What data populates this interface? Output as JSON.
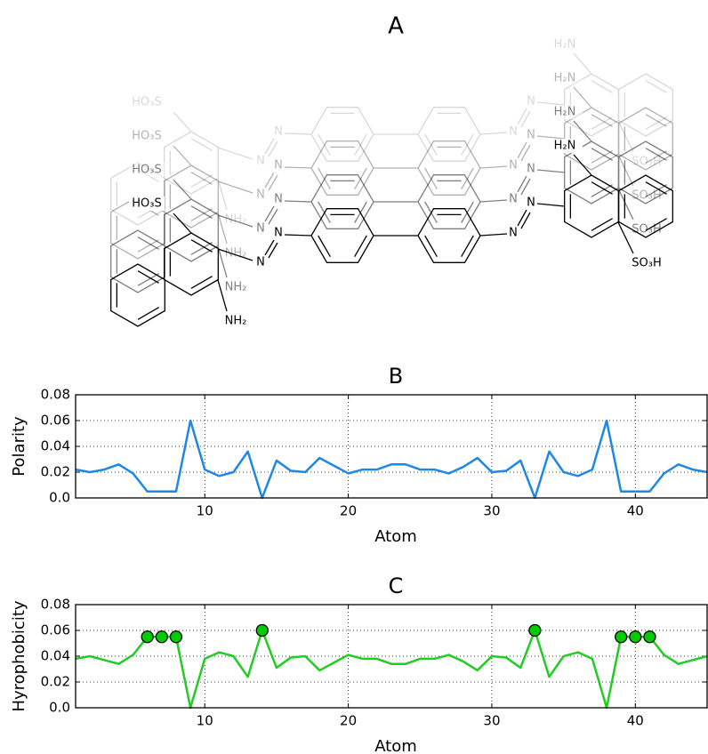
{
  "structure": {
    "title": "A",
    "copies": [
      [
        "HO₃S",
        "NH₂",
        "N",
        "N",
        "N",
        "N",
        "H₂N",
        "SO₃H"
      ],
      [
        "HO₃S",
        "NH₂",
        "N",
        "N",
        "N",
        "N",
        "H₂N",
        "SO₃H"
      ],
      [
        "HO₃S",
        "NH₂",
        "N",
        "N",
        "N",
        "N",
        "H₂N",
        "SO₃H"
      ],
      [
        "HO₃S",
        "NH₂",
        "N",
        "N",
        "N",
        "N",
        "H₂N",
        "SO₃H"
      ]
    ]
  },
  "chart_data": [
    {
      "type": "line",
      "title": "B",
      "xlabel": "Atom",
      "ylabel": "Polarity",
      "x": [
        1,
        2,
        3,
        4,
        5,
        6,
        7,
        8,
        9,
        10,
        11,
        12,
        13,
        14,
        15,
        16,
        17,
        18,
        19,
        20,
        21,
        22,
        23,
        24,
        25,
        26,
        27,
        28,
        29,
        30,
        31,
        32,
        33,
        34,
        35,
        36,
        37,
        38,
        39,
        40,
        41,
        42,
        43,
        44,
        45
      ],
      "series": [
        {
          "color": "#1e88e5",
          "values": [
            0.022,
            0.02,
            0.022,
            0.026,
            0.019,
            0.005,
            0.005,
            0.005,
            0.06,
            0.022,
            0.017,
            0.02,
            0.036,
            0.0,
            0.029,
            0.021,
            0.02,
            0.031,
            0.025,
            0.019,
            0.022,
            0.022,
            0.026,
            0.026,
            0.022,
            0.022,
            0.019,
            0.024,
            0.031,
            0.02,
            0.021,
            0.029,
            0.0,
            0.036,
            0.02,
            0.017,
            0.022,
            0.06,
            0.005,
            0.005,
            0.005,
            0.019,
            0.026,
            0.022,
            0.02
          ]
        }
      ],
      "xlim": [
        1,
        45
      ],
      "ylim": [
        0,
        0.08
      ],
      "xticks": [
        10,
        20,
        30,
        40
      ],
      "yticks": [
        {
          "value": 0,
          "label": "0.0"
        },
        0.02,
        0.04,
        0.06,
        0.08
      ],
      "grid": true
    },
    {
      "type": "line",
      "title": "C",
      "xlabel": "Atom",
      "ylabel": "Hyrophobicity",
      "x": [
        1,
        2,
        3,
        4,
        5,
        6,
        7,
        8,
        9,
        10,
        11,
        12,
        13,
        14,
        15,
        16,
        17,
        18,
        19,
        20,
        21,
        22,
        23,
        24,
        25,
        26,
        27,
        28,
        29,
        30,
        31,
        32,
        33,
        34,
        35,
        36,
        37,
        38,
        39,
        40,
        41,
        42,
        43,
        44,
        45
      ],
      "series": [
        {
          "color": "#22cc22",
          "values": [
            0.038,
            0.04,
            0.037,
            0.034,
            0.041,
            0.055,
            0.055,
            0.055,
            0.0,
            0.038,
            0.043,
            0.04,
            0.024,
            0.06,
            0.031,
            0.039,
            0.04,
            0.029,
            0.035,
            0.041,
            0.038,
            0.038,
            0.034,
            0.034,
            0.038,
            0.038,
            0.041,
            0.036,
            0.029,
            0.04,
            0.039,
            0.031,
            0.06,
            0.024,
            0.04,
            0.043,
            0.038,
            0.0,
            0.055,
            0.055,
            0.055,
            0.041,
            0.034,
            0.037,
            0.04
          ]
        },
        {
          "color": "#00cc00",
          "marker": "circle",
          "line": false,
          "values": [
            null,
            null,
            null,
            null,
            null,
            0.055,
            0.055,
            0.055,
            null,
            null,
            null,
            null,
            null,
            0.06,
            null,
            null,
            null,
            null,
            null,
            null,
            null,
            null,
            null,
            null,
            null,
            null,
            null,
            null,
            null,
            null,
            null,
            null,
            0.06,
            null,
            null,
            null,
            null,
            null,
            0.055,
            0.055,
            0.055,
            null,
            null,
            null,
            null
          ]
        }
      ],
      "xlim": [
        1,
        45
      ],
      "ylim": [
        0,
        0.08
      ],
      "xticks": [
        10,
        20,
        30,
        40
      ],
      "yticks": [
        {
          "value": 0,
          "label": "0.0"
        },
        0.02,
        0.04,
        0.06,
        0.08
      ],
      "grid": true
    }
  ]
}
